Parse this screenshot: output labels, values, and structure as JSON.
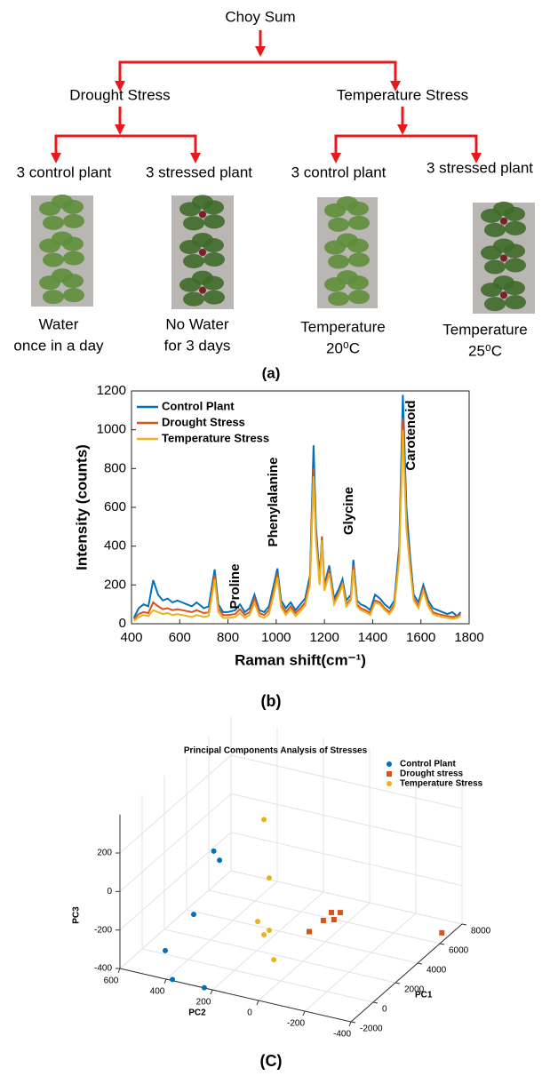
{
  "diagram": {
    "root": "Choy Sum",
    "branches": [
      {
        "label": "Drought Stress",
        "groups": [
          {
            "label": "3 control plant",
            "caption": [
              "Water",
              "once in a day"
            ]
          },
          {
            "label": "3 stressed plant",
            "caption": [
              "No Water",
              "for 3 days"
            ]
          }
        ]
      },
      {
        "label": "Temperature Stress",
        "groups": [
          {
            "label": "3 control plant",
            "caption": [
              "Temperature",
              "20⁰C"
            ]
          },
          {
            "label": "3 stressed plant",
            "caption": [
              "Temperature",
              "25⁰C"
            ]
          }
        ]
      }
    ],
    "panel_label": "(a)"
  },
  "chart_data": [
    {
      "type": "line",
      "panel_label": "(b)",
      "xlabel": "Raman shift(cm⁻¹)",
      "ylabel": "Intensity (counts)",
      "xlim": [
        400,
        1800
      ],
      "xticks": [
        400,
        600,
        800,
        1000,
        1200,
        1400,
        1600,
        1800
      ],
      "ylim": [
        0,
        1200
      ],
      "yticks": [
        0,
        200,
        400,
        600,
        800,
        1000,
        1200
      ],
      "legend": "upper-left",
      "annotations": [
        "Proline",
        "Phenylalanine",
        "Glycine",
        "Carotenoid"
      ],
      "x": [
        410,
        430,
        450,
        470,
        490,
        510,
        530,
        550,
        570,
        590,
        610,
        630,
        650,
        670,
        700,
        720,
        745,
        760,
        780,
        800,
        830,
        850,
        870,
        890,
        910,
        930,
        950,
        970,
        990,
        1005,
        1020,
        1040,
        1060,
        1080,
        1100,
        1120,
        1140,
        1155,
        1165,
        1180,
        1190,
        1200,
        1220,
        1240,
        1260,
        1275,
        1290,
        1310,
        1320,
        1335,
        1350,
        1370,
        1390,
        1410,
        1430,
        1450,
        1470,
        1490,
        1510,
        1525,
        1540,
        1555,
        1570,
        1590,
        1610,
        1630,
        1650,
        1670,
        1690,
        1710,
        1730,
        1750,
        1765
      ],
      "series": [
        {
          "name": "Control Plant",
          "color": "#0072bd",
          "values": [
            30,
            80,
            100,
            90,
            225,
            150,
            120,
            130,
            110,
            120,
            110,
            100,
            90,
            110,
            80,
            90,
            280,
            100,
            60,
            60,
            70,
            100,
            60,
            80,
            150,
            70,
            60,
            90,
            200,
            285,
            120,
            80,
            110,
            70,
            100,
            130,
            250,
            920,
            500,
            240,
            450,
            200,
            300,
            130,
            180,
            230,
            120,
            150,
            330,
            120,
            100,
            90,
            70,
            150,
            130,
            100,
            80,
            120,
            400,
            1180,
            600,
            350,
            150,
            110,
            200,
            120,
            80,
            70,
            60,
            50,
            60,
            40,
            60
          ]
        },
        {
          "name": "Drought Stress",
          "color": "#d95319",
          "values": [
            25,
            50,
            60,
            55,
            110,
            90,
            75,
            80,
            70,
            75,
            70,
            65,
            60,
            70,
            55,
            60,
            250,
            80,
            45,
            45,
            50,
            75,
            45,
            60,
            130,
            55,
            45,
            70,
            170,
            260,
            100,
            60,
            90,
            55,
            80,
            110,
            220,
            800,
            450,
            220,
            450,
            180,
            280,
            110,
            160,
            210,
            100,
            130,
            300,
            100,
            80,
            70,
            55,
            120,
            110,
            80,
            60,
            100,
            350,
            1060,
            520,
            310,
            130,
            90,
            180,
            100,
            60,
            50,
            45,
            40,
            35,
            40,
            50
          ]
        },
        {
          "name": "Temperature Stress",
          "color": "#edb120",
          "values": [
            15,
            35,
            45,
            40,
            70,
            60,
            50,
            55,
            45,
            50,
            45,
            40,
            35,
            45,
            35,
            40,
            230,
            60,
            30,
            30,
            35,
            55,
            30,
            45,
            110,
            40,
            30,
            50,
            150,
            240,
            85,
            45,
            75,
            40,
            65,
            95,
            200,
            760,
            430,
            200,
            430,
            170,
            260,
            100,
            150,
            200,
            90,
            120,
            280,
            90,
            70,
            60,
            45,
            110,
            100,
            70,
            50,
            90,
            330,
            1000,
            490,
            290,
            120,
            80,
            170,
            90,
            50,
            40,
            35,
            30,
            25,
            30,
            40
          ]
        }
      ]
    },
    {
      "type": "scatter3d",
      "panel_label": "(C)",
      "title": "Principal Components Analysis of Stresses",
      "xlabel": "PC1",
      "ylabel": "PC2",
      "zlabel": "PC3",
      "xlim": [
        -2000,
        8000
      ],
      "xticks": [
        -2000,
        0,
        2000,
        4000,
        6000,
        8000
      ],
      "ylim": [
        -400,
        600
      ],
      "yticks": [
        -400,
        -200,
        0,
        200,
        400,
        600
      ],
      "zlim": [
        -400,
        400
      ],
      "zticks": [
        -400,
        -200,
        0,
        200
      ],
      "grid": true,
      "legend": "upper-right",
      "series": [
        {
          "name": "Control Plant",
          "color": "#0072bd",
          "marker": "circle",
          "x": [
            0,
            0,
            0,
            0,
            -2000,
            -2000
          ],
          "y": [
            290,
            265,
            377,
            500,
            373,
            235
          ],
          "z": [
            194,
            154,
            -159,
            -381,
            -394,
            -399
          ]
        },
        {
          "name": "Drought stress",
          "color": "#d95319",
          "marker": "square",
          "x": [
            3000,
            3000,
            3000,
            3000,
            2000,
            6600
          ],
          "y": [
            -75,
            -113,
            -86,
            -40,
            -27,
            -380
          ],
          "z": [
            -176,
            -166,
            -210,
            -227,
            -238,
            -380
          ]
        },
        {
          "name": "Temperature Stress",
          "color": "#edb120",
          "marker": "circle",
          "x": [
            1000,
            1000,
            1000,
            1000,
            1000,
            1000
          ],
          "y": [
            121,
            98,
            148,
            98,
            121,
            78
          ],
          "z": [
            354,
            57,
            -183,
            -215,
            -244,
            -362
          ]
        }
      ]
    }
  ]
}
